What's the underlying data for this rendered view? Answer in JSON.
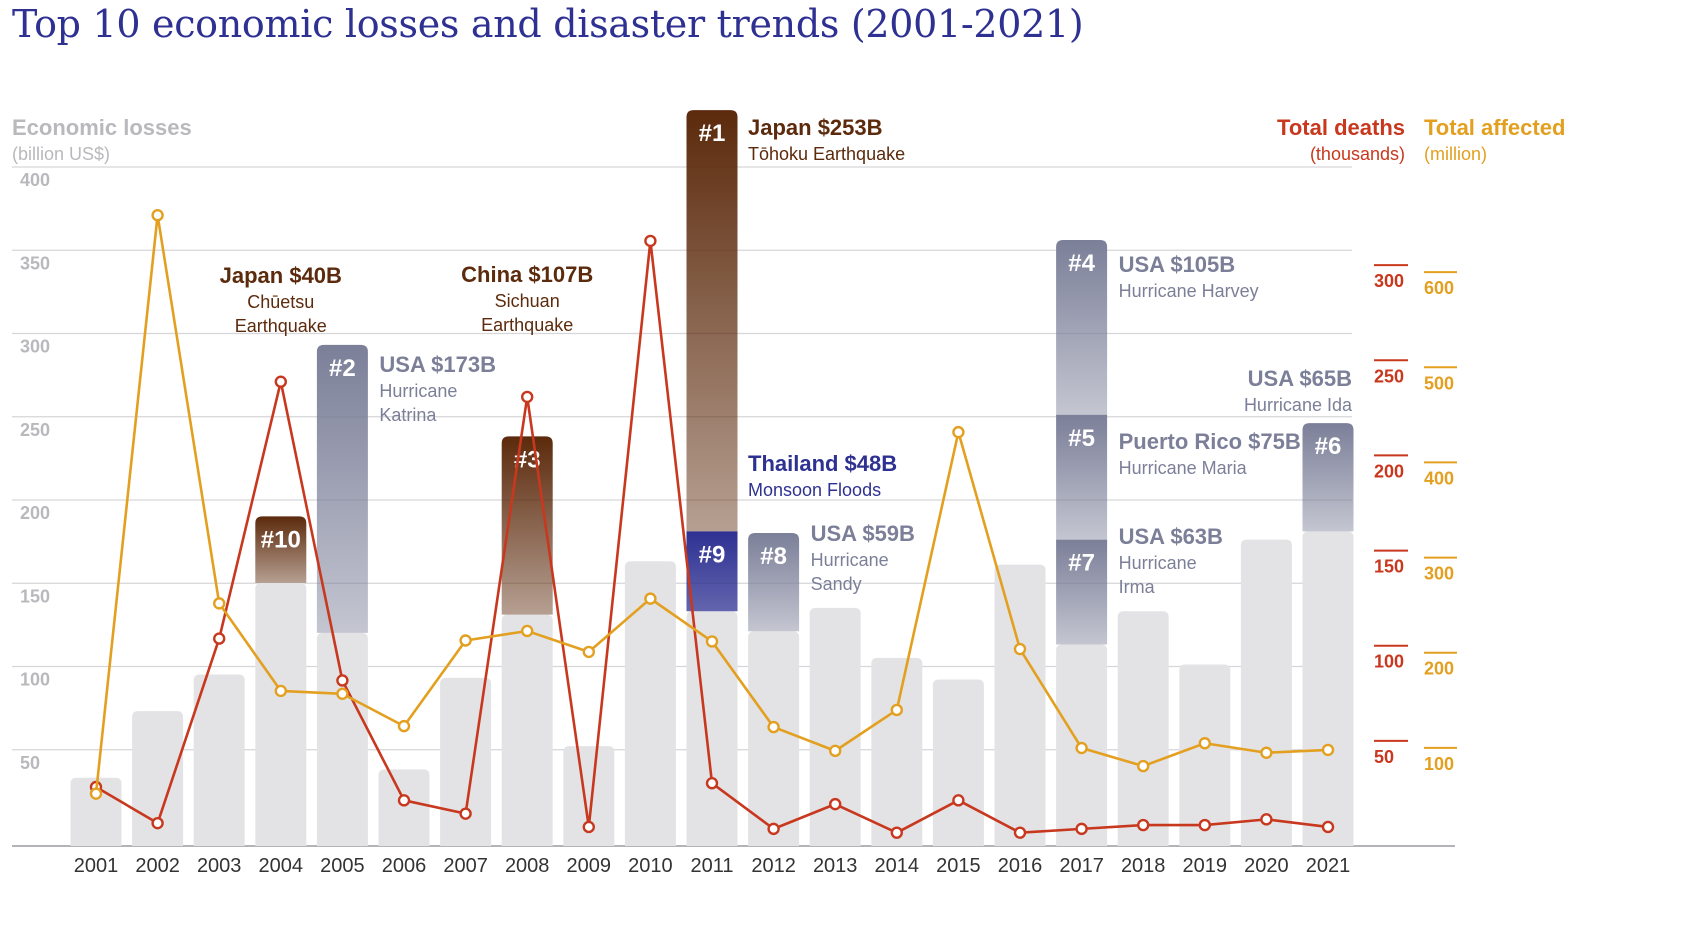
{
  "title": "Top 10 economic losses and disaster trends (2001-2021)",
  "chart_data": {
    "type": "bar",
    "title": "Top 10 economic losses and disaster trends (2001-2021)",
    "categories": [
      "2001",
      "2002",
      "2003",
      "2004",
      "2005",
      "2006",
      "2007",
      "2008",
      "2009",
      "2010",
      "2011",
      "2012",
      "2013",
      "2014",
      "2015",
      "2016",
      "2017",
      "2018",
      "2019",
      "2020",
      "2021"
    ],
    "axes": {
      "left": {
        "label": "Economic losses",
        "unit": "(billion US$)",
        "range": [
          0,
          400
        ],
        "ticks": [
          50,
          100,
          150,
          200,
          250,
          300,
          350,
          400
        ],
        "color": "#b9b9bd"
      },
      "right_deaths": {
        "label": "Total deaths",
        "unit": "(thousands)",
        "range": [
          0,
          350
        ],
        "ticks": [
          50,
          100,
          150,
          200,
          250,
          300
        ],
        "color": "#c8381e"
      },
      "right_affected": {
        "label": "Total affected",
        "unit": "(million)",
        "range": [
          0,
          700
        ],
        "ticks": [
          100,
          200,
          300,
          400,
          500,
          600
        ],
        "color": "#e3a020"
      }
    },
    "grid": true,
    "series": [
      {
        "kind": "bar",
        "values": [
          41,
          81,
          103,
          158,
          128,
          46,
          101,
          139,
          60,
          171,
          141,
          129,
          143,
          113,
          100,
          169,
          121,
          141,
          109,
          184,
          189
        ]
      },
      {
        "kind": "line",
        "name": "Total deaths",
        "color": "#c8381e",
        "values": [
          31,
          12,
          109,
          244,
          87,
          24,
          17,
          236,
          10,
          318,
          33,
          9,
          22,
          7,
          24,
          7,
          9,
          11,
          11,
          14,
          10
        ]
      },
      {
        "kind": "line",
        "name": "Total affected",
        "color": "#e3a020",
        "values": [
          55,
          663,
          255,
          163,
          160,
          126,
          216,
          226,
          204,
          260,
          215,
          125,
          100,
          143,
          435,
          207,
          103,
          84,
          108,
          98,
          101
        ]
      }
    ],
    "top10": [
      {
        "rank": "#1",
        "year": "2011",
        "stack": 1,
        "value": 253,
        "title": "Japan $253B",
        "subtitle": [
          "Tōhoku Earthquake"
        ],
        "color": "#5c2a0c",
        "title_color": "#5c2a0c",
        "sub_color": "#5c2a0c"
      },
      {
        "rank": "#2",
        "year": "2005",
        "stack": 0,
        "value": 173,
        "title": "USA $173B",
        "subtitle": [
          "Hurricane",
          "Katrina"
        ],
        "color": "#7b7f98",
        "title_color": "#7b7f98",
        "sub_color": "#7b7f98"
      },
      {
        "rank": "#3",
        "year": "2008",
        "stack": 0,
        "value": 107,
        "title": "China $107B",
        "subtitle": [
          "Sichuan",
          "Earthquake"
        ],
        "color": "#5c2a0c",
        "title_color": "#5c2a0c",
        "sub_color": "#5c2a0c"
      },
      {
        "rank": "#4",
        "year": "2017",
        "stack": 2,
        "value": 105,
        "title": "USA $105B",
        "subtitle": [
          "Hurricane Harvey"
        ],
        "color": "#7b7f98",
        "title_color": "#7b7f98",
        "sub_color": "#7b7f98"
      },
      {
        "rank": "#5",
        "year": "2017",
        "stack": 1,
        "value": 75,
        "title": "Puerto Rico $75B",
        "subtitle": [
          "Hurricane Maria"
        ],
        "color": "#7b7f98",
        "title_color": "#7b7f98",
        "sub_color": "#7b7f98"
      },
      {
        "rank": "#6",
        "year": "2021",
        "stack": 0,
        "value": 65,
        "title": "USA $65B",
        "subtitle": [
          "Hurricane Ida"
        ],
        "color": "#7b7f98",
        "title_color": "#7b7f98",
        "sub_color": "#7b7f98"
      },
      {
        "rank": "#7",
        "year": "2017",
        "stack": 0,
        "value": 63,
        "title": "USA $63B",
        "subtitle": [
          "Hurricane",
          "Irma"
        ],
        "color": "#7b7f98",
        "title_color": "#7b7f98",
        "sub_color": "#7b7f98"
      },
      {
        "rank": "#8",
        "year": "2012",
        "stack": 0,
        "value": 59,
        "title": "USA $59B",
        "subtitle": [
          "Hurricane",
          "Sandy"
        ],
        "color": "#7b7f98",
        "title_color": "#7b7f98",
        "sub_color": "#7b7f98"
      },
      {
        "rank": "#9",
        "year": "2011",
        "stack": 0,
        "value": 48,
        "title": "Thailand $48B",
        "subtitle": [
          "Monsoon Floods"
        ],
        "color": "#2e3192",
        "title_color": "#2e3192",
        "sub_color": "#2e3192"
      },
      {
        "rank": "#10",
        "year": "2004",
        "stack": 0,
        "value": 40,
        "title": "Japan $40B",
        "subtitle": [
          "Chūetsu",
          "Earthquake"
        ],
        "color": "#5c2a0c",
        "title_color": "#5c2a0c",
        "sub_color": "#5c2a0c"
      }
    ]
  }
}
